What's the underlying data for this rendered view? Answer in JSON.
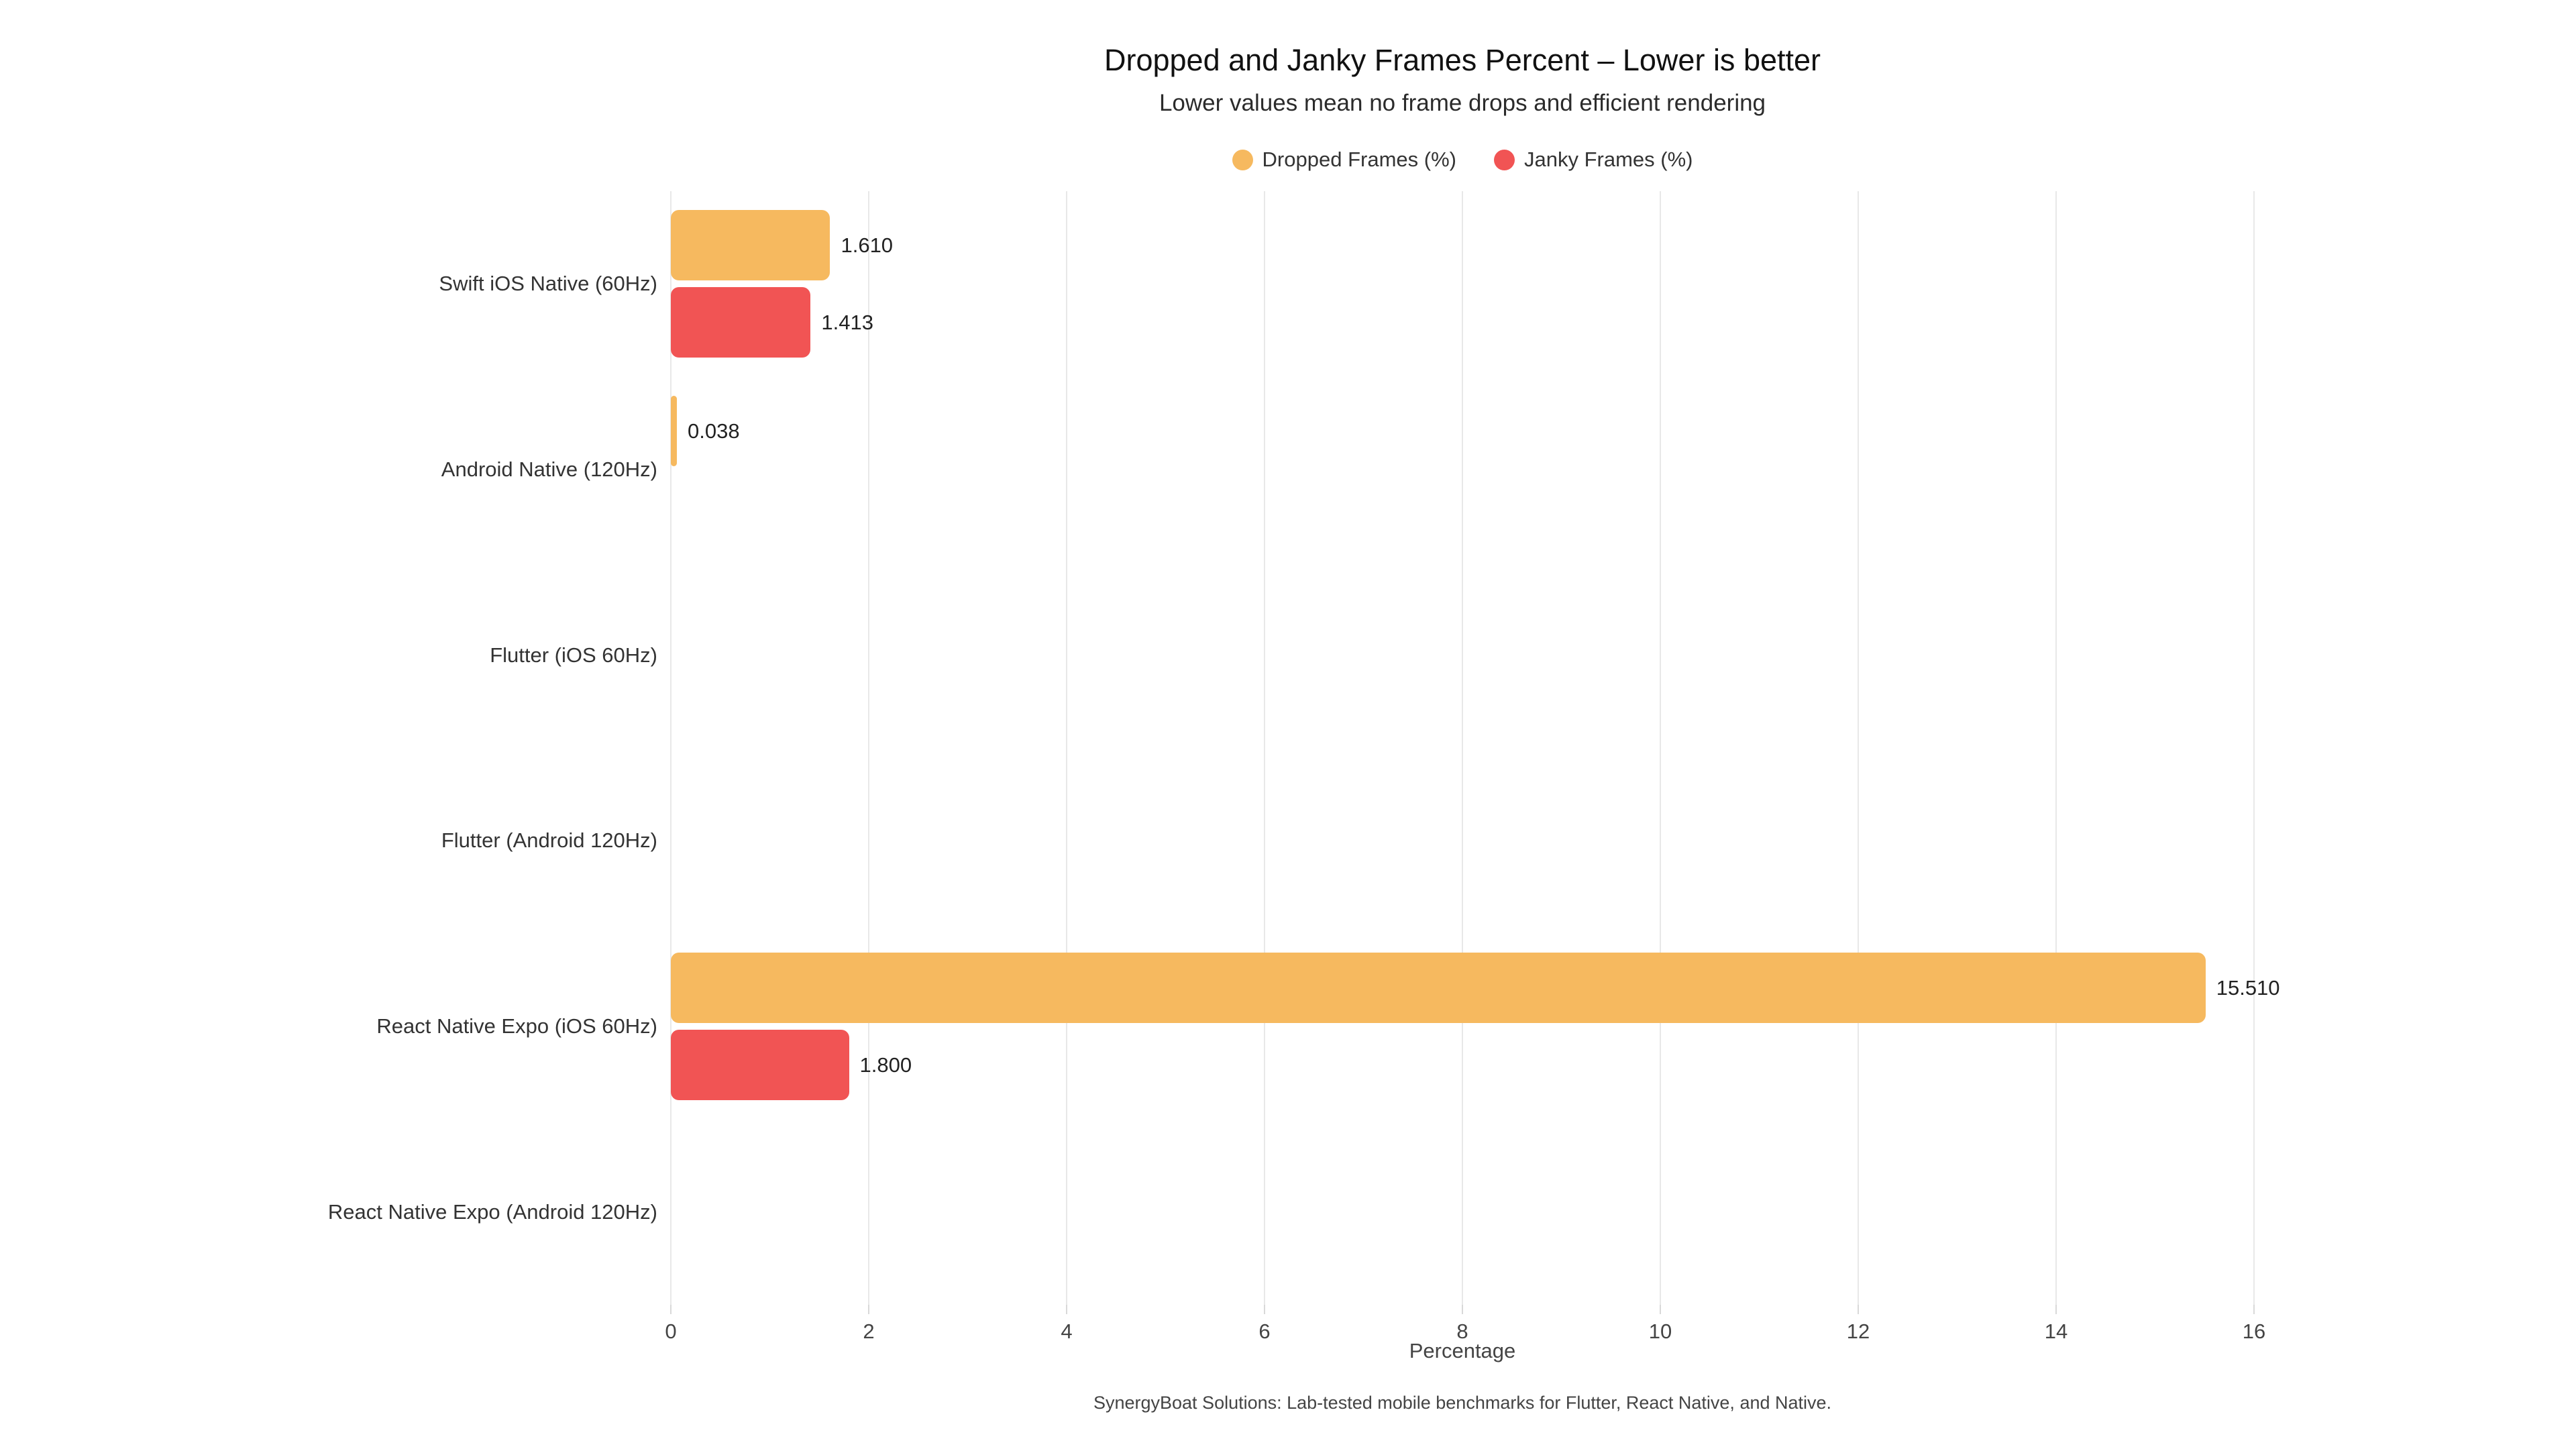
{
  "page": {
    "background": "#ffffff"
  },
  "chart_data": {
    "type": "bar",
    "orientation": "horizontal",
    "title": "Dropped and Janky Frames Percent – Lower is better",
    "subtitle": "Lower values mean no frame drops and efficient rendering",
    "categories": [
      "Swift iOS Native (60Hz)",
      "Android Native (120Hz)",
      "Flutter (iOS 60Hz)",
      "Flutter (Android 120Hz)",
      "React Native Expo (iOS 60Hz)",
      "React Native Expo (Android 120Hz)"
    ],
    "series": [
      {
        "name": "Dropped Frames (%)",
        "color": "#F6B95F",
        "values": [
          1.61,
          0.038,
          0,
          0,
          15.51,
          0
        ]
      },
      {
        "name": "Janky Frames (%)",
        "color": "#F15454",
        "values": [
          1.413,
          0,
          0,
          0,
          1.8,
          0
        ]
      }
    ],
    "value_label_decimals": 3,
    "hide_zero_labels": true,
    "xlabel": "Percentage",
    "x_ticks": [
      0,
      2,
      4,
      6,
      8,
      10,
      12,
      14,
      16
    ],
    "xlim": [
      0,
      16
    ],
    "grid": true,
    "legend_position": "top",
    "footer": "SynergyBoat Solutions: Lab-tested mobile benchmarks for Flutter, React Native, and Native.",
    "colors": {
      "grid": "#e8e8e8",
      "tick_label": "#444444",
      "value_label": "#222222",
      "category_label": "#333333",
      "title": "#111111",
      "subtitle": "#2b2b2b",
      "footer": "#444444"
    }
  }
}
